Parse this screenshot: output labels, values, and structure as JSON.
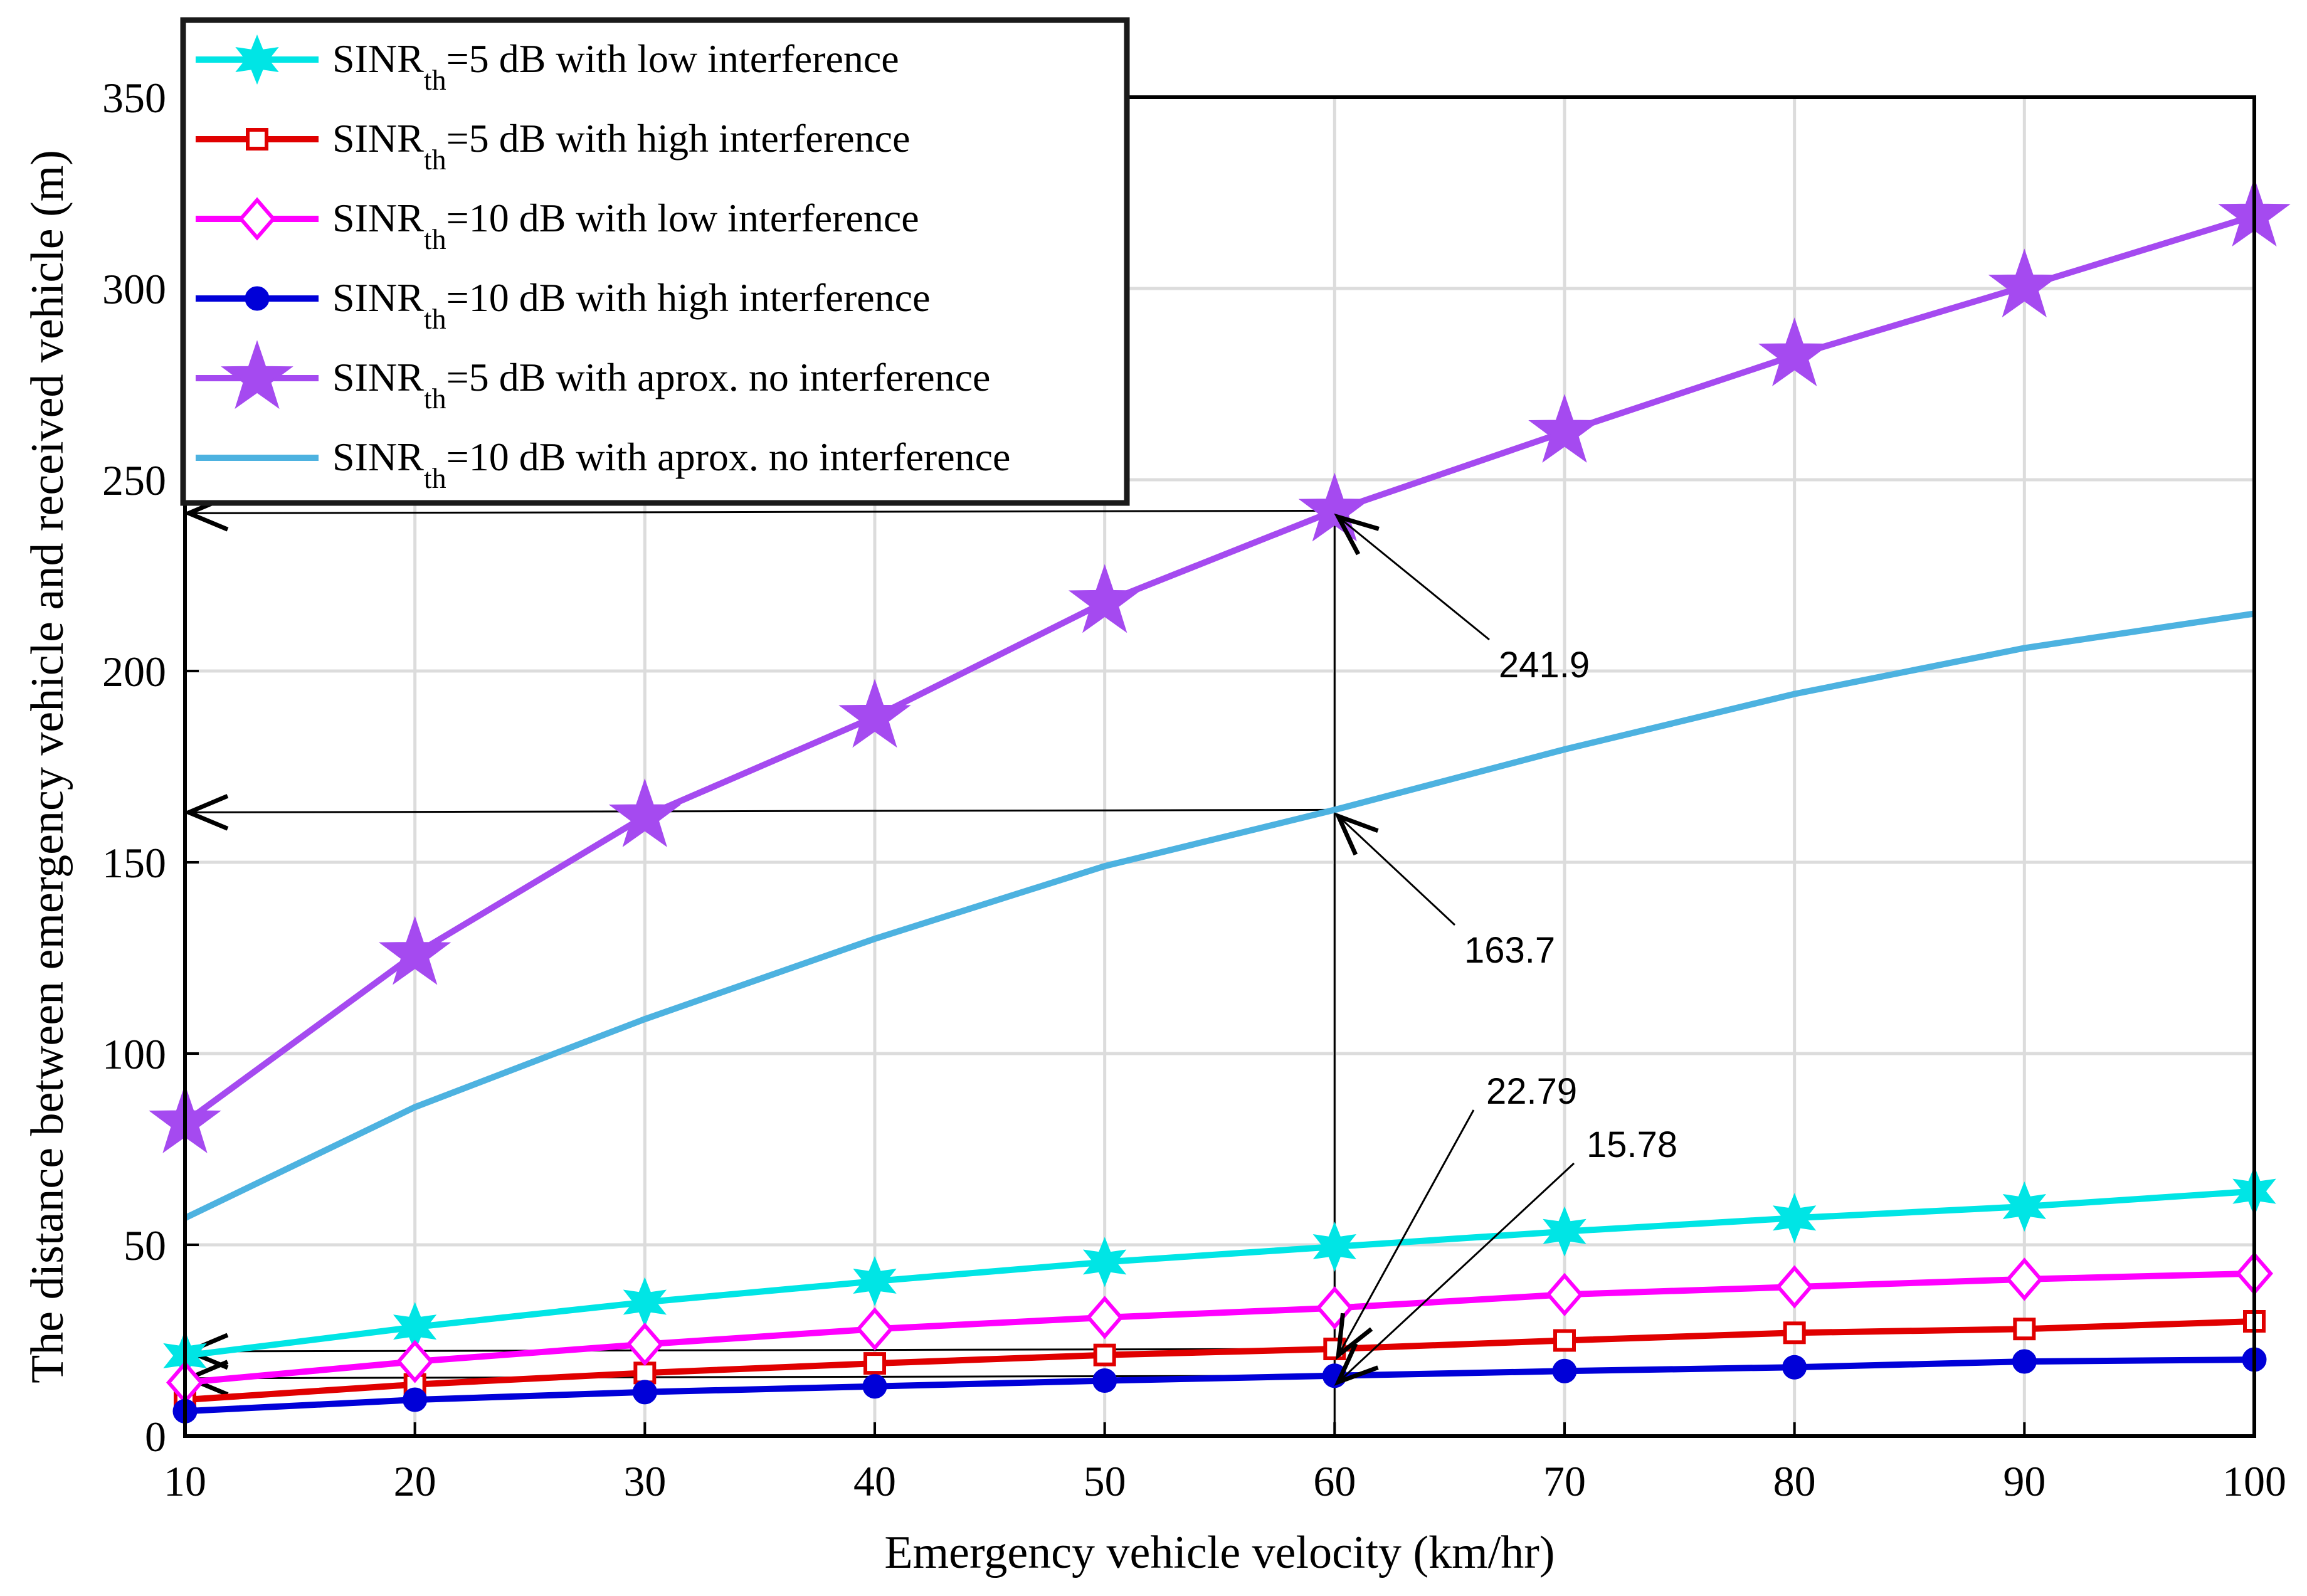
{
  "chart_data": {
    "type": "line",
    "title": "",
    "xlabel": "Emergency vehicle velocity (km/hr)",
    "ylabel": "The distance between emergency vehicle and received vehicle (m)",
    "xlim": [
      10,
      100
    ],
    "ylim": [
      0,
      350
    ],
    "grid": true,
    "legend_position": "top-left",
    "x": [
      10,
      20,
      30,
      40,
      50,
      60,
      70,
      80,
      90,
      100
    ],
    "x_ticks": [
      "10",
      "20",
      "30",
      "40",
      "50",
      "60",
      "70",
      "80",
      "90",
      "100"
    ],
    "y_ticks": [
      "0",
      "50",
      "100",
      "150",
      "200",
      "250",
      "300",
      "350"
    ],
    "series": [
      {
        "name": "SINR_th=5 dB with low interference",
        "prefix": "SINR",
        "sub": "th",
        "suffix": "=5 dB with low interference",
        "color": "#00e5e5",
        "marker": "star6",
        "values": [
          21,
          28.5,
          35,
          40.5,
          45.5,
          49.5,
          53.5,
          57,
          60,
          64
        ]
      },
      {
        "name": "SINR_th=5 dB with high interference",
        "prefix": "SINR",
        "sub": "th",
        "suffix": "=5 dB with high interference",
        "color": "#e00000",
        "marker": "square",
        "values": [
          9.5,
          13.5,
          16.5,
          19,
          21.2,
          22.79,
          25,
          27,
          28,
          30
        ]
      },
      {
        "name": "SINR_th=10 dB with low interference",
        "prefix": "SINR",
        "sub": "th",
        "suffix": "=10 dB with low interference",
        "color": "#ff00ff",
        "marker": "diamond",
        "values": [
          14,
          19.5,
          24,
          28,
          31,
          33.5,
          37,
          39,
          41,
          42.5
        ]
      },
      {
        "name": "SINR_th=10 dB with high interference",
        "prefix": "SINR",
        "sub": "th",
        "suffix": "=10 dB with high interference",
        "color": "#0000d8",
        "marker": "circle",
        "values": [
          6.5,
          9.5,
          11.5,
          13,
          14.5,
          15.78,
          17,
          18,
          19.5,
          20
        ]
      },
      {
        "name": "SINR_th=5 dB with aprox. no interference",
        "prefix": "SINR",
        "sub": "th",
        "suffix": "=5 dB with aprox. no interference",
        "color": "#a54af0",
        "marker": "star5",
        "values": [
          82,
          126,
          162,
          188,
          218,
          241.9,
          262.5,
          282.5,
          300.5,
          319
        ]
      },
      {
        "name": "SINR_th=10 dB with aprox. no interference",
        "prefix": "SINR",
        "sub": "th",
        "suffix": "=10 dB with aprox. no interference",
        "color": "#4db2e0",
        "marker": "none",
        "values": [
          57,
          86,
          109,
          130,
          149,
          163.7,
          179.5,
          194,
          206,
          215
        ]
      }
    ],
    "annotations": [
      {
        "text": "241.9",
        "value": 241.9,
        "series_index": 4
      },
      {
        "text": "163.7",
        "value": 163.7,
        "series_index": 5
      },
      {
        "text": "22.79",
        "value": 22.79,
        "series_index": 1
      },
      {
        "text": "15.78",
        "value": 15.78,
        "series_index": 3
      }
    ]
  }
}
